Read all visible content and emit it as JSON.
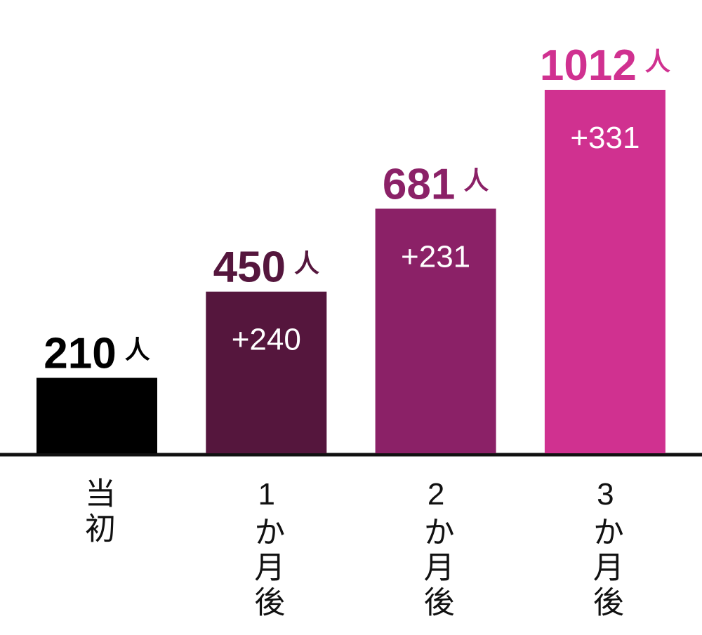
{
  "chart_data": {
    "type": "bar",
    "categories": [
      "当初",
      "1か月後",
      "2か月後",
      "3か月後"
    ],
    "values": [
      210,
      450,
      681,
      1012
    ],
    "colors": [
      "#000000",
      "#55163d",
      "#8b2167",
      "#d03190"
    ],
    "unit": "人",
    "annotations": [
      "+240",
      "+231",
      "+331"
    ]
  }
}
